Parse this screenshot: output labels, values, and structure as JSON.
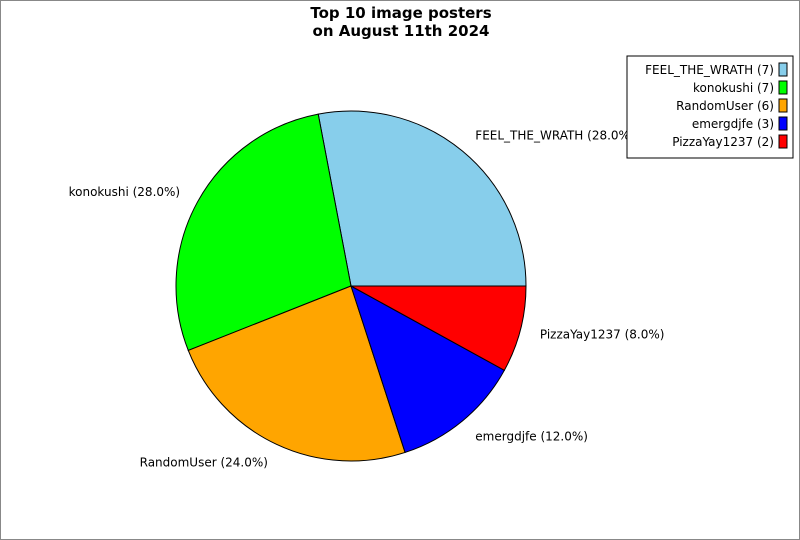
{
  "chart_data": {
    "type": "pie",
    "title": [
      "Top 10 image posters",
      "on August 11th 2024"
    ],
    "legend_position": "top-right",
    "slices": [
      {
        "name": "FEEL_THE_WRATH",
        "value": 7,
        "percent": "28.0%",
        "color": "#87ceeb"
      },
      {
        "name": "konokushi",
        "value": 7,
        "percent": "28.0%",
        "color": "#00ff00"
      },
      {
        "name": "RandomUser",
        "value": 6,
        "percent": "24.0%",
        "color": "#ffa500"
      },
      {
        "name": "emergdjfe",
        "value": 3,
        "percent": "12.0%",
        "color": "#0000ff"
      },
      {
        "name": "PizzaYay1237",
        "value": 2,
        "percent": "8.0%",
        "color": "#ff0000"
      }
    ]
  }
}
